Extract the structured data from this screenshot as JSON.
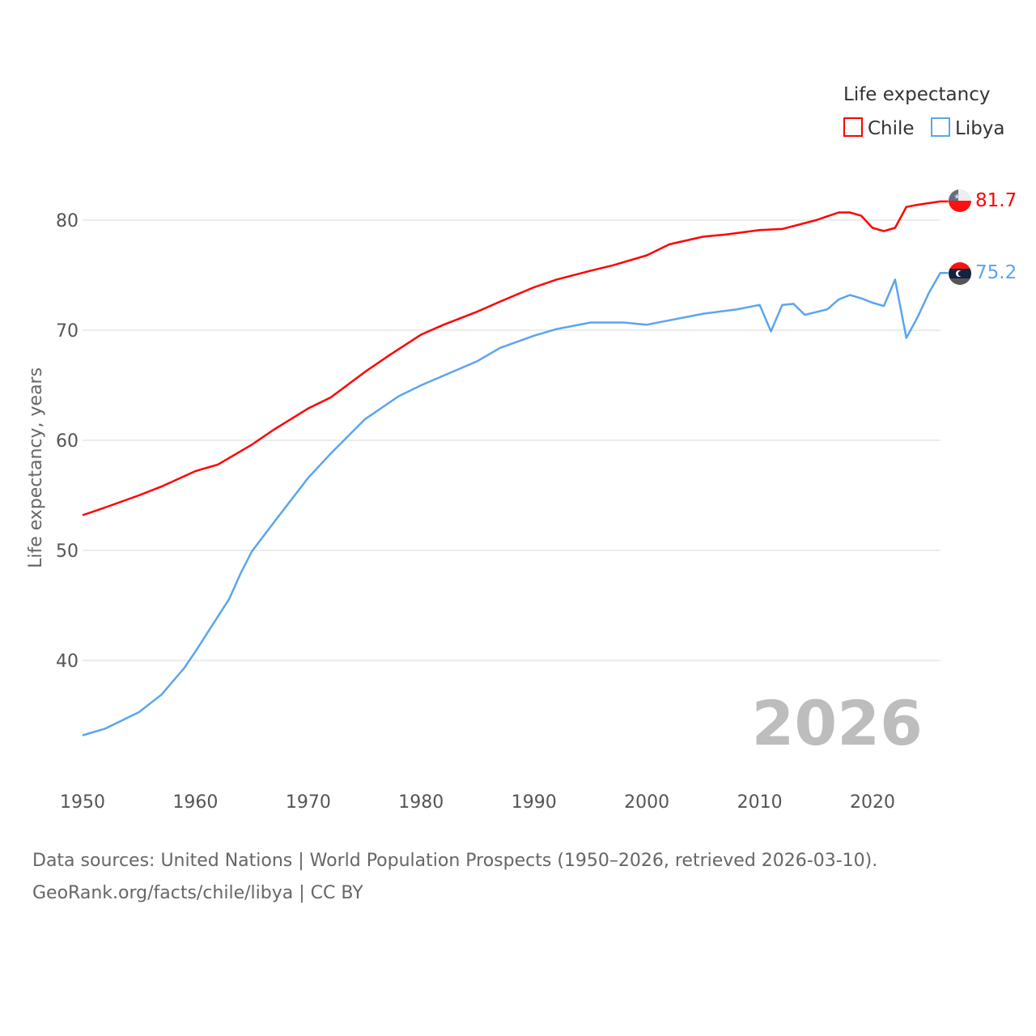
{
  "chart_data": {
    "type": "line",
    "title": "",
    "ylabel": "Life expectancy, years",
    "xlabel": "",
    "xlim": [
      1950,
      2026
    ],
    "ylim": [
      31,
      86
    ],
    "x_ticks": [
      1950,
      1960,
      1970,
      1980,
      1990,
      2000,
      2010,
      2020
    ],
    "y_ticks": [
      40,
      50,
      60,
      70,
      80
    ],
    "grid": true,
    "legend": {
      "title": "Life expectancy",
      "position": "top-right"
    },
    "year_overlay": "2026",
    "series": [
      {
        "name": "Chile",
        "color": "#ff0000",
        "end_label": "81.7",
        "x": [
          1950,
          1952,
          1955,
          1957,
          1960,
          1962,
          1965,
          1967,
          1970,
          1972,
          1975,
          1977,
          1980,
          1982,
          1985,
          1987,
          1990,
          1992,
          1995,
          1997,
          2000,
          2002,
          2005,
          2007,
          2010,
          2012,
          2015,
          2017,
          2018,
          2019,
          2020,
          2021,
          2022,
          2023,
          2024,
          2026
        ],
        "y": [
          53.2,
          53.9,
          55.0,
          55.8,
          57.2,
          57.8,
          59.6,
          61.0,
          62.9,
          63.9,
          66.2,
          67.6,
          69.6,
          70.5,
          71.7,
          72.6,
          73.9,
          74.6,
          75.4,
          75.9,
          76.8,
          77.8,
          78.5,
          78.7,
          79.1,
          79.2,
          80.0,
          80.7,
          80.7,
          80.4,
          79.3,
          79.0,
          79.3,
          81.2,
          81.4,
          81.7
        ]
      },
      {
        "name": "Libya",
        "color": "#5aa5ee",
        "end_label": "75.2",
        "x": [
          1950,
          1952,
          1955,
          1957,
          1959,
          1960,
          1962,
          1963,
          1964,
          1965,
          1967,
          1970,
          1972,
          1975,
          1978,
          1980,
          1985,
          1987,
          1990,
          1992,
          1995,
          1998,
          2000,
          2005,
          2008,
          2010,
          2011,
          2012,
          2013,
          2014,
          2016,
          2017,
          2018,
          2019,
          2020,
          2021,
          2022,
          2023,
          2024,
          2025,
          2026
        ],
        "y": [
          33.2,
          33.8,
          35.3,
          36.9,
          39.3,
          40.8,
          44.0,
          45.6,
          47.9,
          49.9,
          52.6,
          56.6,
          58.8,
          61.9,
          64.0,
          65.0,
          67.2,
          68.4,
          69.5,
          70.1,
          70.7,
          70.7,
          70.5,
          71.5,
          71.9,
          72.3,
          69.9,
          72.3,
          72.4,
          71.4,
          71.9,
          72.8,
          73.2,
          72.9,
          72.5,
          72.2,
          74.6,
          69.3,
          71.2,
          73.4,
          75.2
        ]
      }
    ]
  },
  "source": {
    "line1": "Data sources: United Nations | World Population Prospects (1950–2026, retrieved 2026-03-10).",
    "line2": "GeoRank.org/facts/chile/libya | CC BY"
  }
}
